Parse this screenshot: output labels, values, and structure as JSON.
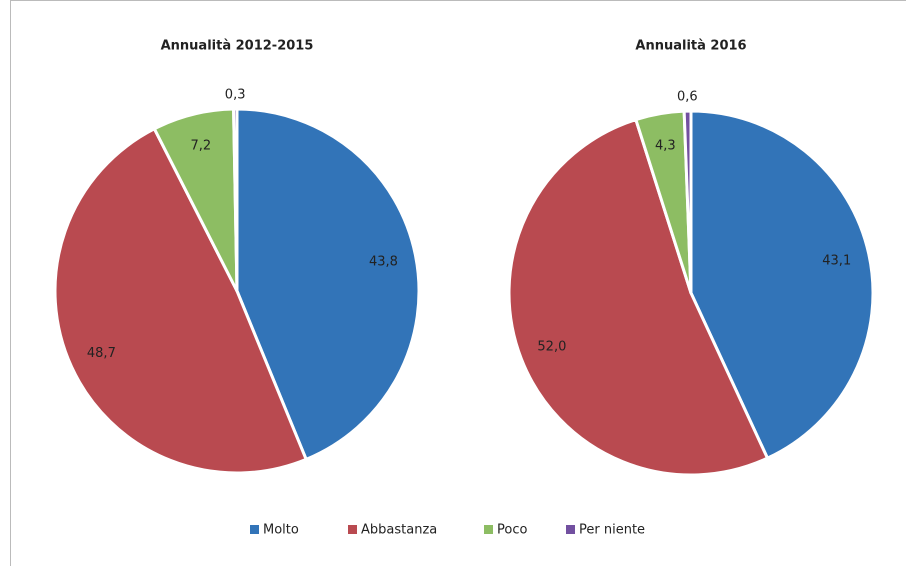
{
  "chart_data": [
    {
      "type": "pie",
      "title": "Annualità 2012-2015",
      "categories": [
        "Molto",
        "Abbastanza",
        "Poco",
        "Per niente"
      ],
      "values": [
        43.8,
        48.7,
        7.2,
        0.3
      ],
      "value_labels": [
        "43,8",
        "48,7",
        "7,2",
        "0,3"
      ],
      "colors": [
        "#3274b8",
        "#b94a50",
        "#8dbd63",
        "#7250a0"
      ],
      "legend": "bottom"
    },
    {
      "type": "pie",
      "title": "Annualità 2016",
      "categories": [
        "Molto",
        "Abbastanza",
        "Poco",
        "Per niente"
      ],
      "values": [
        43.1,
        52.0,
        4.3,
        0.6
      ],
      "value_labels": [
        "43,1",
        "52,0",
        "4,3",
        "0,6"
      ],
      "colors": [
        "#3274b8",
        "#b94a50",
        "#8dbd63",
        "#7250a0"
      ],
      "legend": "bottom"
    }
  ]
}
